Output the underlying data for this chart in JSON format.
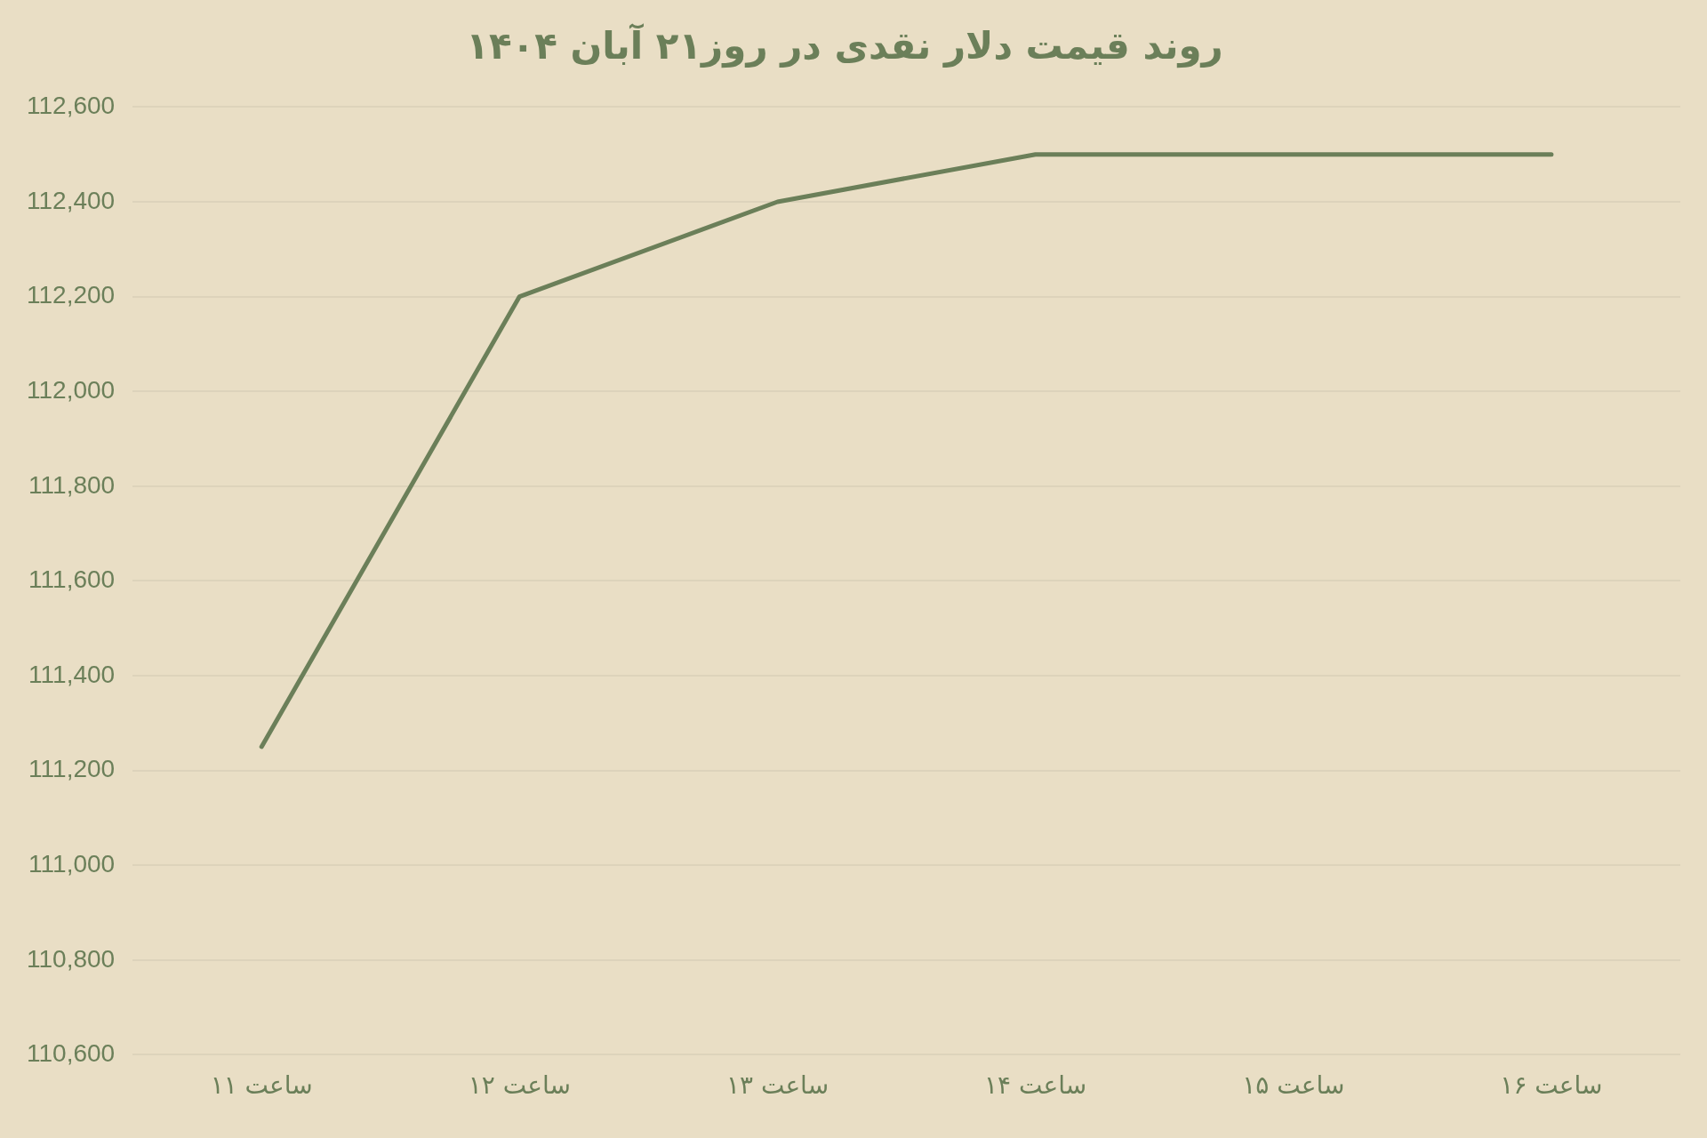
{
  "chart_data": {
    "type": "line",
    "title": "روند قیمت دلار نقدی در روز۲۱ آبان ۱۴۰۴",
    "categories": [
      "ساعت ۱۱",
      "ساعت ۱۲",
      "ساعت ۱۳",
      "ساعت ۱۴",
      "ساعت ۱۵",
      "ساعت ۱۶"
    ],
    "series": [
      {
        "color": "#6b7f59",
        "values": [
          111250,
          112200,
          112400,
          112500,
          112500,
          112500
        ]
      }
    ],
    "ylim": [
      110600,
      112600
    ],
    "yticks": [
      {
        "value": 110600,
        "label": "110,600"
      },
      {
        "value": 110800,
        "label": "110,800"
      },
      {
        "value": 111000,
        "label": "111,000"
      },
      {
        "value": 111200,
        "label": "111,200"
      },
      {
        "value": 111400,
        "label": "111,400"
      },
      {
        "value": 111600,
        "label": "111,600"
      },
      {
        "value": 111800,
        "label": "111,800"
      },
      {
        "value": 112000,
        "label": "112,000"
      },
      {
        "value": 112200,
        "label": "112,200"
      },
      {
        "value": 112400,
        "label": "112,400"
      },
      {
        "value": 112600,
        "label": "112,600"
      }
    ],
    "grid": "y",
    "legend": false,
    "marker": "none",
    "line_style": "solid"
  }
}
